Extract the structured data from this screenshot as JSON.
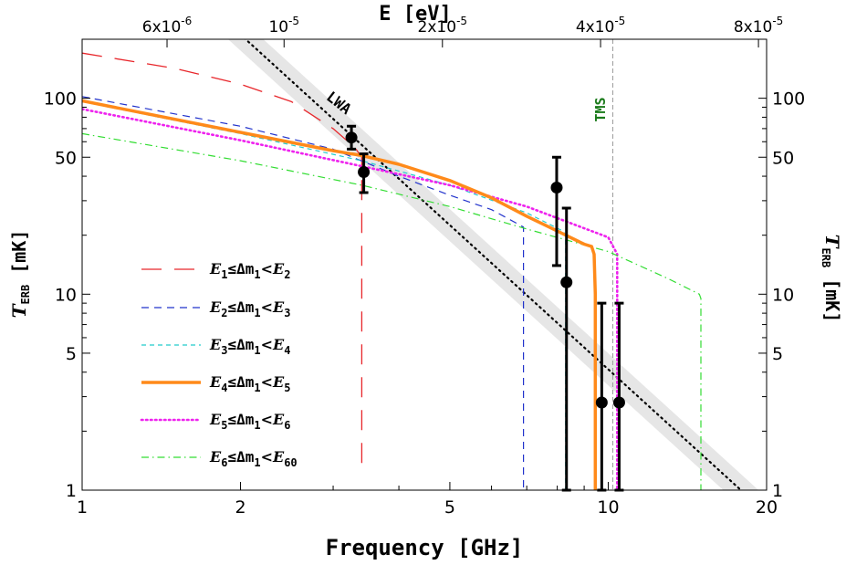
{
  "chart_data": {
    "type": "line",
    "xlabel": "Frequency [GHz]",
    "x2label": "E [eV]",
    "ylabel": "T_ERB [mK]",
    "ylabel_parts": {
      "main": "T",
      "sub": "ERB",
      "unit": " [mK]"
    },
    "x2label_parts": {
      "main": "E",
      "unit": " [eV]"
    },
    "xlabel_parts": {
      "main": "Frequency",
      "unit": " [GHz]"
    },
    "xlim": [
      1,
      20
    ],
    "ylim": [
      1,
      200
    ],
    "xscale": "log",
    "yscale": "log",
    "x_ticks": [
      1,
      2,
      5,
      10,
      20
    ],
    "x_tick_labels": [
      "1",
      "2",
      "5",
      "10",
      "20"
    ],
    "y_ticks": [
      1,
      5,
      10,
      50,
      100
    ],
    "y_tick_labels": [
      "1",
      "5",
      "10",
      "50",
      "100"
    ],
    "x2_ticks": [
      {
        "label_base": "6x10",
        "label_exp": "-6",
        "freq": 1.45
      },
      {
        "label_base": "10",
        "label_exp": "-5",
        "freq": 2.42
      },
      {
        "label_base": "2x10",
        "label_exp": "-5",
        "freq": 4.84
      },
      {
        "label_base": "4x10",
        "label_exp": "-5",
        "freq": 9.67
      },
      {
        "label_base": "8x10",
        "label_exp": "-5",
        "freq": 19.3
      }
    ],
    "annotations": [
      {
        "text": "LWA",
        "color": "#000000"
      },
      {
        "text": "TMS",
        "color": "#1a7a1a"
      }
    ],
    "tms_line_freq": 10.2,
    "legend_position": "left-middle",
    "series": [
      {
        "label_parts": [
          "E",
          "1",
          "≤Δm",
          "1",
          "<E",
          "2"
        ],
        "color": "#e8262b",
        "style": "longdash",
        "x": [
          1,
          1.5,
          2,
          2.5,
          3.0,
          3.3,
          3.4,
          3.4
        ],
        "y": [
          170,
          142,
          118,
          96,
          70,
          56,
          50,
          1.3
        ]
      },
      {
        "label_parts": [
          "E",
          "2",
          "≤Δm",
          "1",
          "<E",
          "3"
        ],
        "color": "#2233cc",
        "style": "dash",
        "x": [
          1,
          2,
          3,
          4,
          5,
          6,
          6.7,
          6.9,
          6.9
        ],
        "y": [
          102,
          72,
          55,
          40,
          32,
          27,
          23,
          22,
          1.0
        ]
      },
      {
        "label_parts": [
          "E",
          "3",
          "≤Δm",
          "1",
          "<E",
          "4"
        ],
        "color": "#22cccc",
        "style": "shortdash",
        "x": [
          1,
          2,
          3.4,
          5,
          7,
          8.2,
          8.3,
          8.3
        ],
        "y": [
          96,
          66,
          48,
          36,
          26,
          21,
          20,
          1.0
        ]
      },
      {
        "label_parts": [
          "E",
          "4",
          "≤Δm",
          "1",
          "<E",
          "5"
        ],
        "color": "#ff8a1a",
        "style": "solid",
        "x": [
          1,
          2,
          3,
          3.4,
          4,
          5,
          6,
          7,
          8,
          9,
          9.3,
          9.4,
          9.45,
          9.45
        ],
        "y": [
          97,
          67,
          54,
          51,
          46,
          38,
          31,
          25,
          21,
          18,
          17.5,
          16,
          10,
          1.0
        ]
      },
      {
        "label_parts": [
          "E",
          "5",
          "≤Δm",
          "1",
          "<E",
          "6"
        ],
        "color": "#ee22ee",
        "style": "dot",
        "x": [
          1,
          2,
          3.4,
          5,
          7,
          8.5,
          10.0,
          10.4,
          10.4
        ],
        "y": [
          88,
          61,
          45,
          36,
          28,
          23,
          19.5,
          16,
          1.0
        ]
      },
      {
        "label_parts": [
          "E",
          "6",
          "≤Δm",
          "1",
          "<E",
          "60"
        ],
        "color": "#33dd33",
        "style": "dashdot",
        "x": [
          1,
          2,
          3.4,
          5,
          7,
          10,
          13,
          14.9,
          15.0,
          15.0
        ],
        "y": [
          66,
          48,
          36,
          28,
          21.5,
          16.5,
          12,
          10,
          9.5,
          1.0
        ]
      }
    ],
    "lwa_fit": {
      "x": [
        1.0,
        20.0
      ],
      "y": [
        1150,
        0.76
      ],
      "band_color": "#e6e6e6",
      "line_color": "#000000"
    },
    "data_points": [
      {
        "x": 3.25,
        "y": 63,
        "yerr_low": 8,
        "yerr_high": 9
      },
      {
        "x": 3.43,
        "y": 42,
        "yerr_low": 9,
        "yerr_high": 10
      },
      {
        "x": 7.98,
        "y": 35,
        "yerr_low": 21,
        "yerr_high": 15
      },
      {
        "x": 8.33,
        "y": 11.5,
        "yerr_low": 10.5,
        "yerr_high": 16
      },
      {
        "x": 9.72,
        "y": 2.8,
        "yerr_low": 1.8,
        "yerr_high": 6.2
      },
      {
        "x": 10.49,
        "y": 2.8,
        "yerr_low": 1.8,
        "yerr_high": 6.2
      }
    ]
  }
}
